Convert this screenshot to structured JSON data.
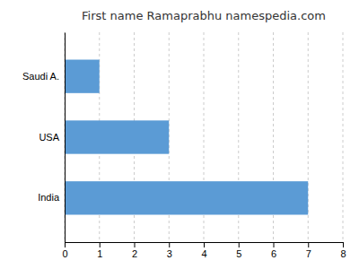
{
  "chart_data": {
    "type": "bar",
    "orientation": "horizontal",
    "title": "First name Ramaprabhu namespedia.com",
    "categories": [
      "India",
      "USA",
      "Saudi A."
    ],
    "values": [
      7,
      3,
      1
    ],
    "color": "#5b9bd5",
    "xlim": [
      0,
      8
    ],
    "xticks": [
      0,
      1,
      2,
      3,
      4,
      5,
      6,
      7,
      8
    ],
    "grid": true
  }
}
